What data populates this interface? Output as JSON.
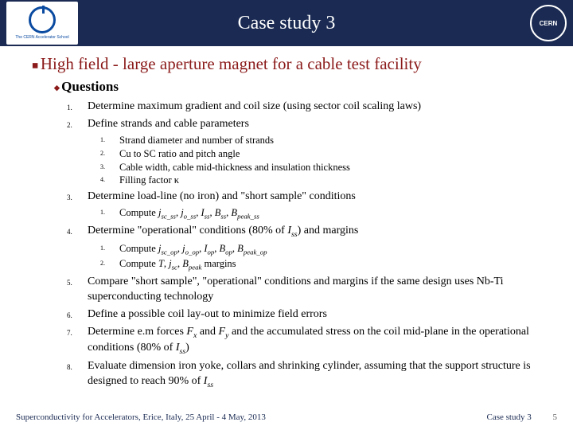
{
  "header": {
    "title": "Case study 3",
    "logo_left_text": "The CERN Accelerator School",
    "logo_right_text": "CERN"
  },
  "main_heading": "High field - large aperture magnet for a cable test facility",
  "sub_heading": "Questions",
  "items": [
    {
      "text": "Determine maximum gradient and coil size (using sector coil scaling laws)"
    },
    {
      "text": "Define strands and cable parameters",
      "sub": [
        "Strand diameter and number of strands",
        "Cu to SC ratio and pitch angle",
        "Cable width, cable mid-thickness and insulation thickness",
        "Filling factor κ"
      ]
    },
    {
      "text": "Determine load-line (no iron) and \"short sample\" conditions",
      "sub": [
        "Compute <i>j<sub>sc_ss</sub></i>, <i>j<sub>o_ss</sub></i>, <i>I<sub>ss</sub></i>, <i>B<sub>ss</sub></i>, <i>B<sub>peak_ss</sub></i>"
      ]
    },
    {
      "text": "Determine \"operational\" conditions (80% of <i>I<sub>ss</sub></i>) and margins",
      "sub": [
        "Compute <i>j<sub>sc_op</sub></i>, <i>j<sub>o_op</sub></i>, <i>I<sub>op</sub></i>, <i>B<sub>op</sub></i>, <i>B<sub>peak_op</sub></i>",
        "Compute <i>T</i>, <i>j<sub>sc</sub></i>, <i>B<sub>peak</sub></i> margins"
      ]
    },
    {
      "text": "Compare \"short sample\", \"operational\" conditions and margins if the same design uses Nb-Ti superconducting technology"
    },
    {
      "text": "Define a possible coil lay-out to minimize field errors"
    },
    {
      "text": "Determine e.m forces <i>F<sub>x</sub></i> and <i>F<sub>y</sub></i> and the accumulated stress on the coil mid-plane in the operational conditions (80% of <i>I<sub>ss</sub></i>)"
    },
    {
      "text": "Evaluate dimension iron yoke, collars and shrinking cylinder, assuming that the support structure is designed to reach 90% of <i>I<sub>ss</sub></i>"
    }
  ],
  "footer": {
    "left": "Superconductivity for Accelerators, Erice, Italy, 25 April - 4 May, 2013",
    "right": "Case study 3",
    "page": "5"
  },
  "colors": {
    "header_bg": "#1a2a52",
    "accent": "#8b1a1a",
    "text": "#000000",
    "bg": "#ffffff"
  }
}
